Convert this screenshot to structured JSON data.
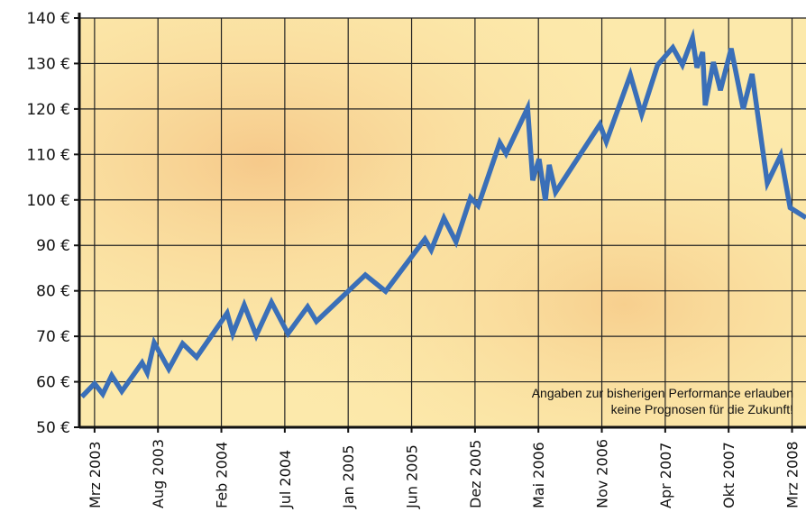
{
  "chart_data": {
    "type": "line",
    "categories": [
      "Mrz 2003",
      "Aug 2003",
      "Feb 2004",
      "Jul 2004",
      "Jan 2005",
      "Jun 2005",
      "Dez 2005",
      "Mai 2006",
      "Nov 2006",
      "Apr 2007",
      "Okt 2007",
      "Mrz 2008"
    ],
    "x": [
      -0.2,
      0,
      0.13,
      0.27,
      0.43,
      0.75,
      0.83,
      0.94,
      1.17,
      1.39,
      1.61,
      2.09,
      2.18,
      2.36,
      2.55,
      2.79,
      3.05,
      3.36,
      3.5,
      4.27,
      4.59,
      5.21,
      5.31,
      5.51,
      5.7,
      5.93,
      6.05,
      6.39,
      6.49,
      6.83,
      6.91,
      7.01,
      7.11,
      7.17,
      7.27,
      7.97,
      8.07,
      8.45,
      8.63,
      8.88,
      9.12,
      9.27,
      9.43,
      9.5,
      9.59,
      9.63,
      9.76,
      9.87,
      10.04,
      10.23,
      10.37,
      10.61,
      10.82,
      10.97,
      11.22
    ],
    "values": [
      56.7,
      59.6,
      57.3,
      61.4,
      57.9,
      64.2,
      62,
      68.6,
      62.8,
      68.4,
      65.4,
      75.1,
      70.6,
      76.9,
      70.2,
      77.5,
      70.6,
      76.5,
      73.3,
      83.5,
      79.9,
      91.4,
      89,
      96,
      90.8,
      100.5,
      98.7,
      112.6,
      110.2,
      120.2,
      104.3,
      109,
      99.9,
      107.7,
      101.7,
      116.6,
      112.8,
      127.5,
      118.8,
      129.7,
      133.5,
      129.7,
      135.6,
      129.1,
      132.5,
      120.8,
      130.3,
      124.1,
      133.3,
      120,
      127.7,
      103.7,
      109.8,
      98.3,
      96.1
    ],
    "color": "#3a6fb8",
    "xlim": [
      -0.24,
      11.22
    ],
    "ylim": [
      50,
      140
    ],
    "yticks": [
      {
        "value": 50,
        "label": "50 €"
      },
      {
        "value": 60,
        "label": "60 €"
      },
      {
        "value": 70,
        "label": "70 €"
      },
      {
        "value": 80,
        "label": "80 €"
      },
      {
        "value": 90,
        "label": "90 €"
      },
      {
        "value": 100,
        "label": "100 €"
      },
      {
        "value": 110,
        "label": "110 €"
      },
      {
        "value": 120,
        "label": "120 €"
      },
      {
        "value": 130,
        "label": "130 €"
      },
      {
        "value": 140,
        "label": "140 €"
      }
    ],
    "grid": true,
    "annotation": [
      "Angaben zur bisherigen Performance erlauben",
      "keine Prognosen für die Zukunft!"
    ]
  }
}
